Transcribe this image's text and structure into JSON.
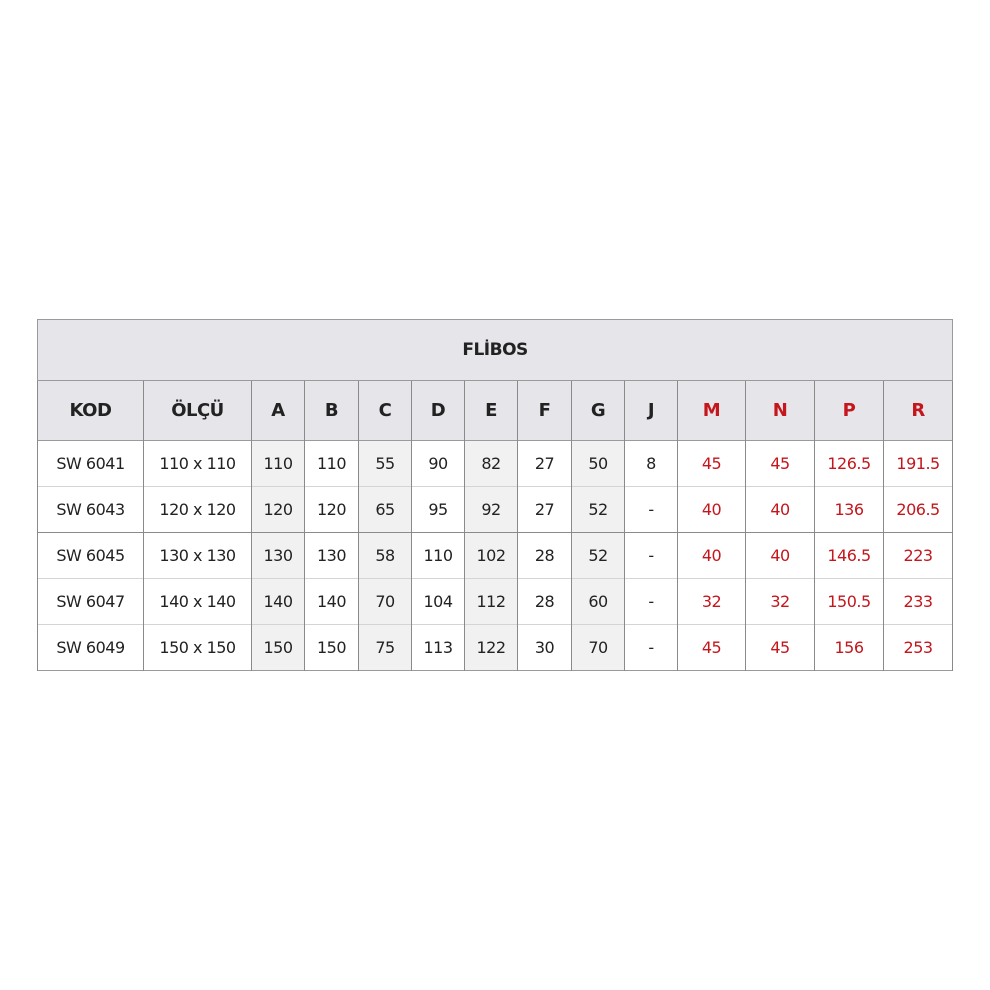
{
  "title": "FLİBOS",
  "headers": [
    "KOD",
    "ÖLÇÜ",
    "A",
    "B",
    "C",
    "D",
    "E",
    "F",
    "G",
    "J",
    "M",
    "N",
    "P",
    "R"
  ],
  "accent_color": "#c4161c",
  "rows": [
    [
      "SW 6041",
      "110 x 110",
      "110",
      "110",
      "55",
      "90",
      "82",
      "27",
      "50",
      "8",
      "45",
      "45",
      "126.5",
      "191.5"
    ],
    [
      "SW 6043",
      "120 x 120",
      "120",
      "120",
      "65",
      "95",
      "92",
      "27",
      "52",
      "-",
      "40",
      "40",
      "136",
      "206.5"
    ],
    [
      "SW 6045",
      "130 x 130",
      "130",
      "130",
      "58",
      "110",
      "102",
      "28",
      "52",
      "-",
      "40",
      "40",
      "146.5",
      "223"
    ],
    [
      "SW 6047",
      "140 x 140",
      "140",
      "140",
      "70",
      "104",
      "112",
      "28",
      "60",
      "-",
      "32",
      "32",
      "150.5",
      "233"
    ],
    [
      "SW 6049",
      "150 x 150",
      "150",
      "150",
      "75",
      "113",
      "122",
      "30",
      "70",
      "-",
      "45",
      "45",
      "156",
      "253"
    ]
  ]
}
